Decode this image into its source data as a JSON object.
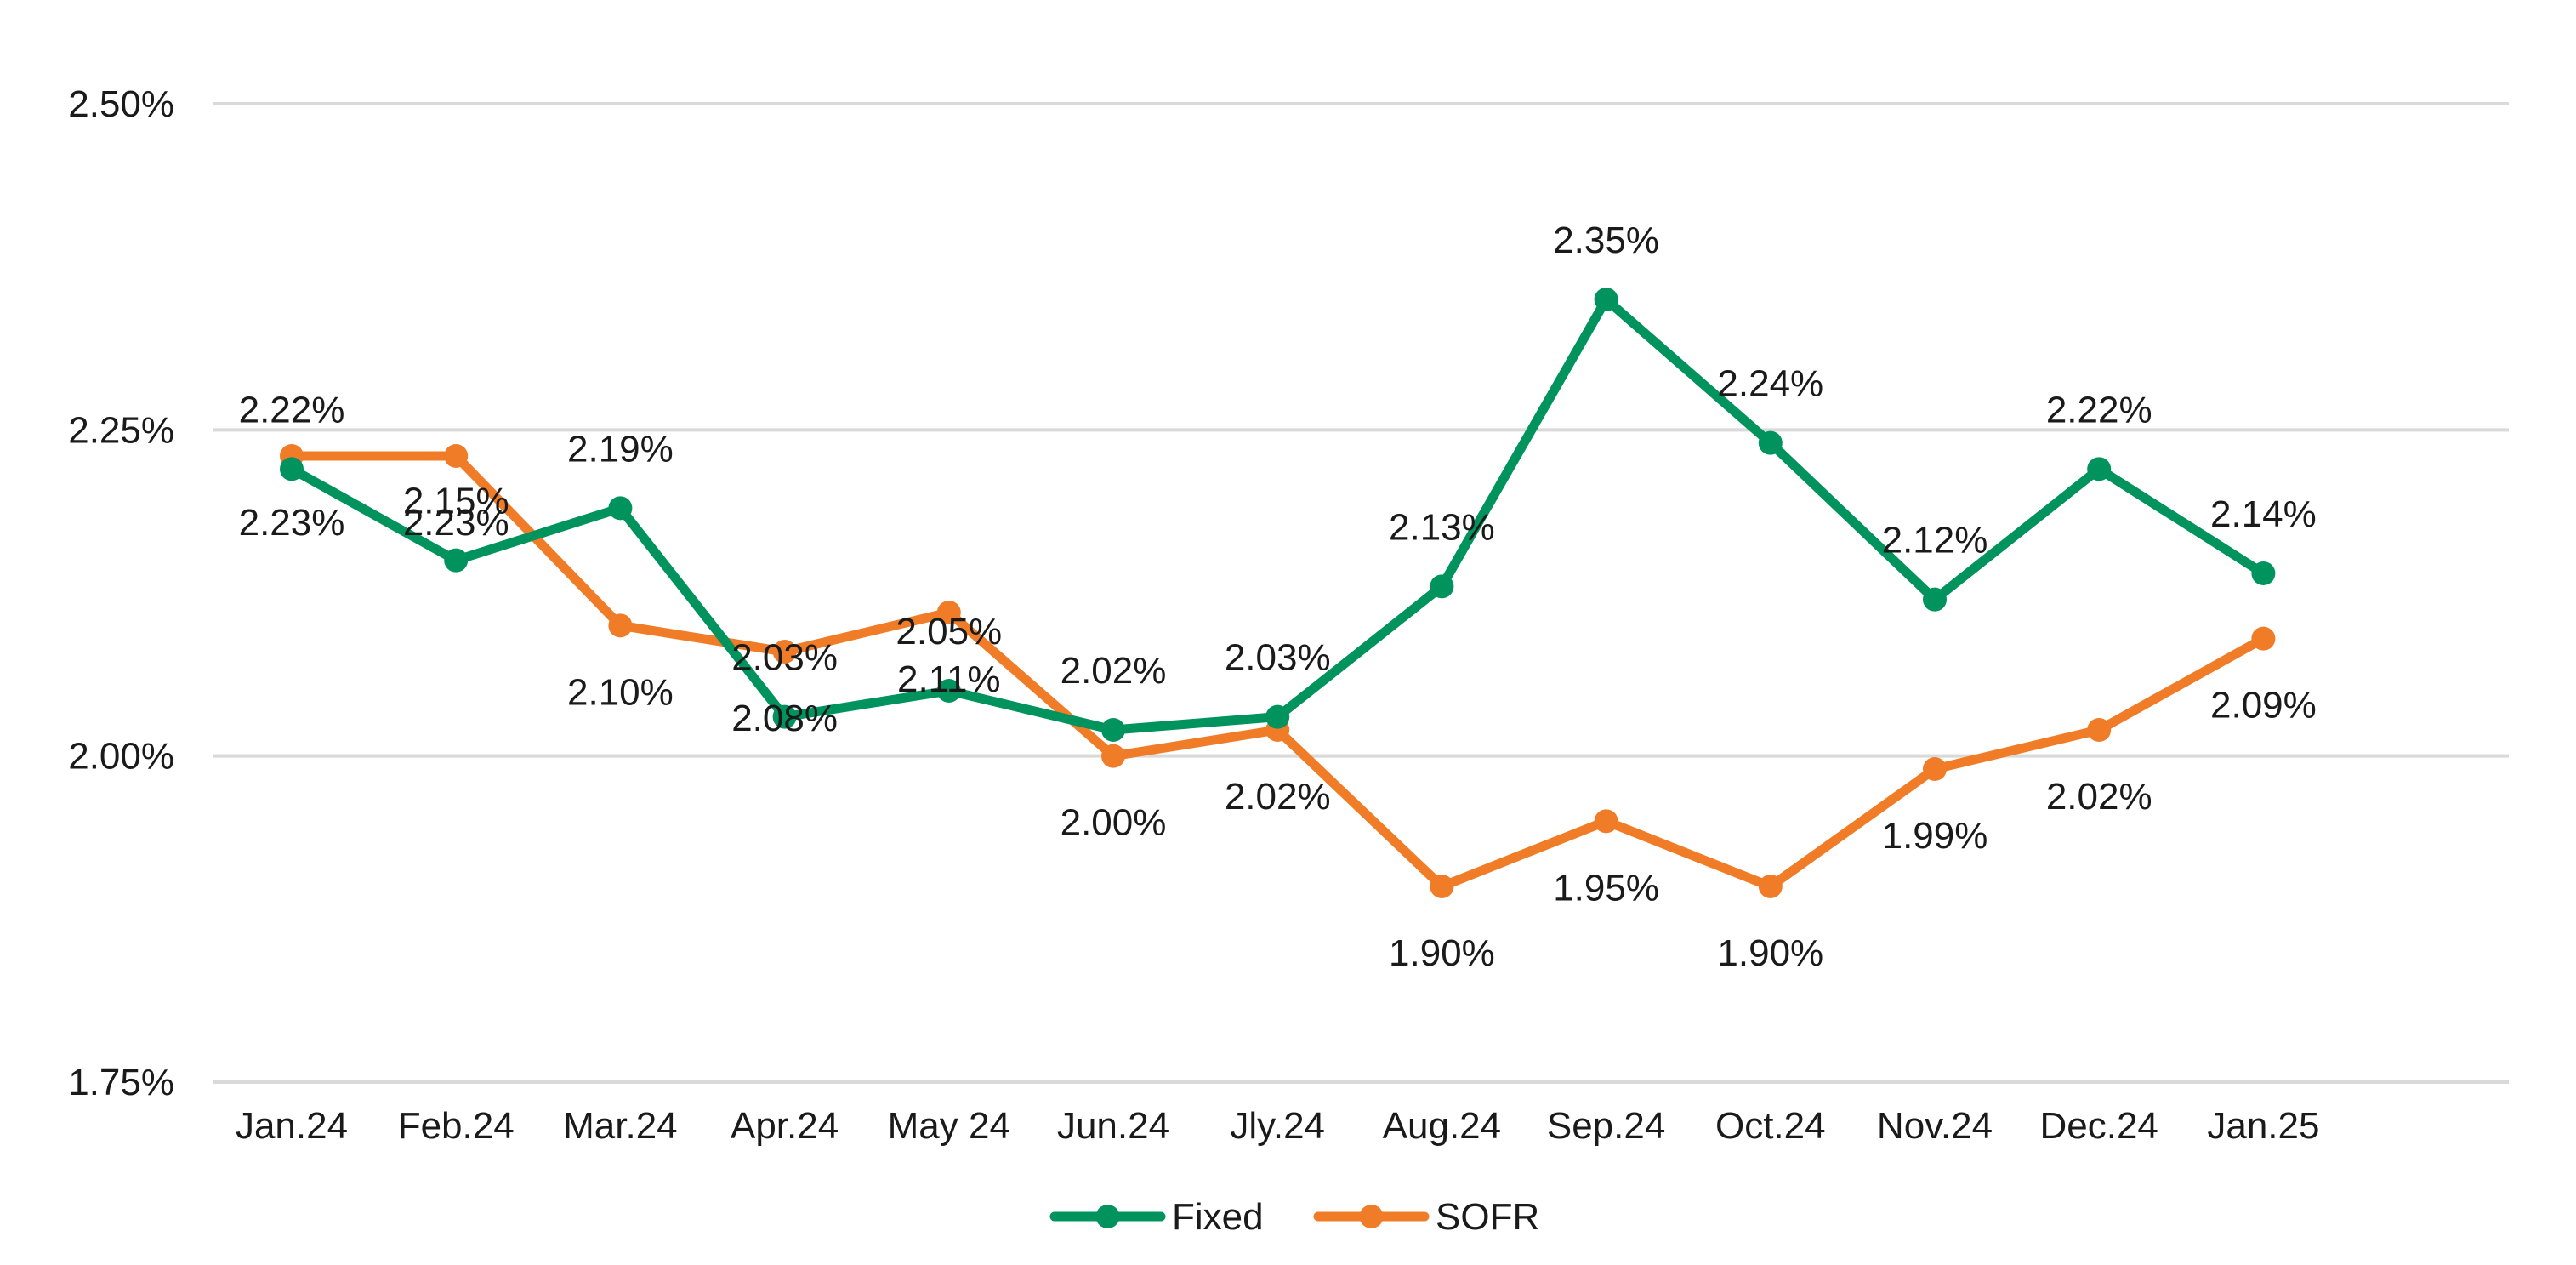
{
  "chart_data": {
    "type": "line",
    "title": "",
    "xlabel": "",
    "ylabel": "",
    "categories": [
      "Jan.24",
      "Feb.24",
      "Mar.24",
      "Apr.24",
      "May 24",
      "Jun.24",
      "Jly.24",
      "Aug.24",
      "Sep.24",
      "Oct.24",
      "Nov.24",
      "Dec.24",
      "Jan.25"
    ],
    "ylim": [
      1.75,
      2.5
    ],
    "yticks": [
      1.75,
      2.0,
      2.25,
      2.5
    ],
    "ytick_labels": [
      "1.75%",
      "2.00%",
      "2.25%",
      "2.50%"
    ],
    "grid": "horizontal",
    "legend_position": "bottom-center",
    "series": [
      {
        "name": "Fixed",
        "color": "#00935E",
        "values": [
          2.22,
          2.15,
          2.19,
          2.03,
          2.05,
          2.02,
          2.03,
          2.13,
          2.35,
          2.24,
          2.12,
          2.22,
          2.14
        ],
        "labels": [
          "2.22%",
          "2.15%",
          "2.19%",
          "2.03%",
          "2.05%",
          "2.02%",
          "2.03%",
          "2.13%",
          "2.35%",
          "2.24%",
          "2.12%",
          "2.22%",
          "2.14%"
        ]
      },
      {
        "name": "SOFR",
        "color": "#F07C28",
        "values": [
          2.23,
          2.23,
          2.1,
          2.08,
          2.11,
          2.0,
          2.02,
          1.9,
          1.95,
          1.9,
          1.99,
          2.02,
          2.09
        ],
        "labels": [
          "2.23%",
          "2.23%",
          "2.10%",
          "2.08%",
          "2.11%",
          "2.00%",
          "2.02%",
          "1.90%",
          "1.95%",
          "1.90%",
          "1.99%",
          "2.02%",
          "2.09%"
        ]
      }
    ]
  }
}
